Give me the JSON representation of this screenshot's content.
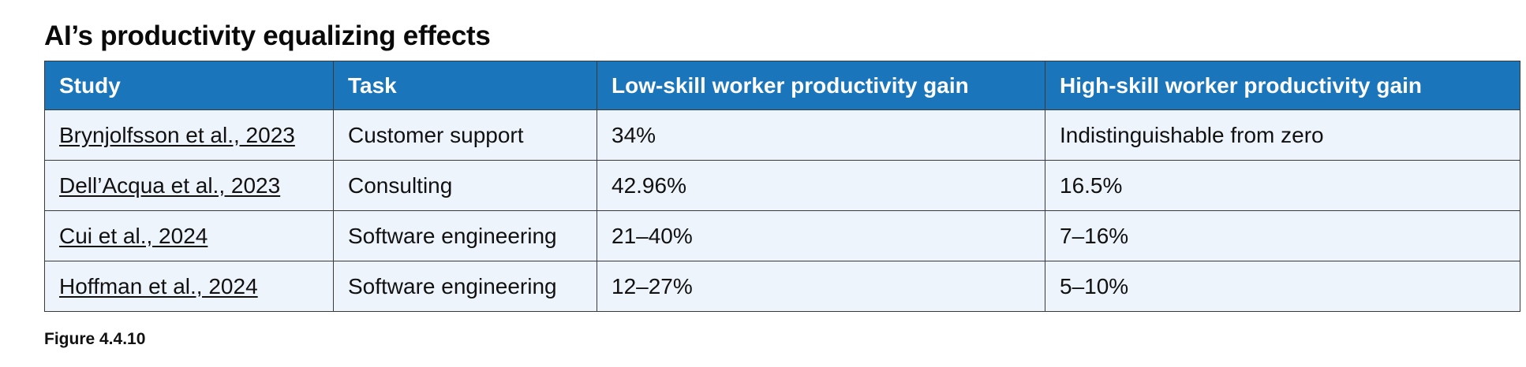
{
  "title": "AI’s productivity equalizing effects",
  "table": {
    "headers": [
      "Study",
      "Task",
      "Low-skill worker productivity gain",
      "High-skill worker productivity gain"
    ],
    "rows": [
      [
        "Brynjolfsson et al., 2023",
        "Customer support",
        "34%",
        "Indistinguishable from zero"
      ],
      [
        "Dell’Acqua et al., 2023",
        "Consulting",
        "42.96%",
        "16.5%"
      ],
      [
        "Cui et al., 2024",
        "Software engineering",
        "21–40%",
        "7–16%"
      ],
      [
        "Hoffman et al., 2024",
        "Software engineering",
        "12–27%",
        "5–10%"
      ]
    ]
  },
  "caption": "Figure 4.4.10",
  "colors": {
    "header_bg": "#1a75ba",
    "row_bg": "#eef4fb",
    "border": "#3a3a3a"
  }
}
